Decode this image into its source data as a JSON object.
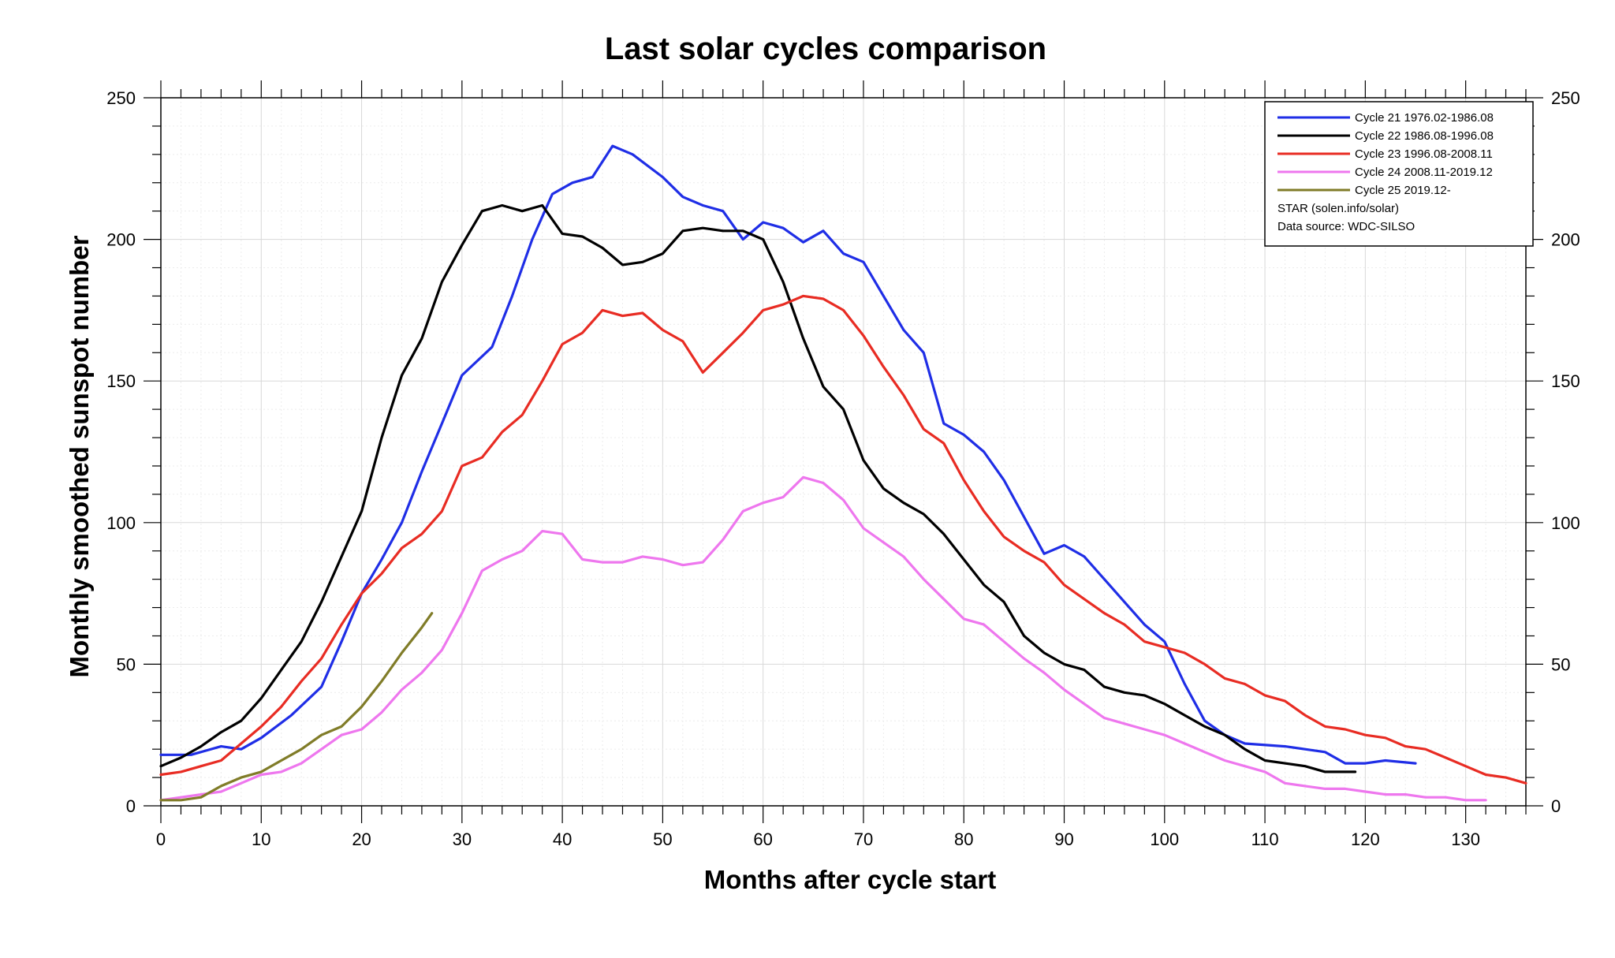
{
  "chart_data": {
    "type": "line",
    "title": "Last solar cycles comparison",
    "xlabel": "Months after cycle start",
    "ylabel": "Monthly smoothed sunspot number",
    "xlim": [
      0,
      136
    ],
    "ylim": [
      0,
      250
    ],
    "x_ticks": [
      "0",
      "10",
      "20",
      "30",
      "40",
      "50",
      "60",
      "70",
      "80",
      "90",
      "100",
      "110",
      "120",
      "130"
    ],
    "y_ticks": [
      "0",
      "50",
      "100",
      "150",
      "200",
      "250"
    ],
    "y_ticks_right": [
      "0",
      "50",
      "100",
      "150",
      "200",
      "250"
    ],
    "grid": true,
    "legend_position": "top-right",
    "legend_notes": [
      "STAR (solen.info/solar)",
      "Data source: WDC-SILSO"
    ],
    "series": [
      {
        "name": "Cycle 21 1976.02-1986.08",
        "color": "#1f2ee6",
        "points": [
          [
            0,
            18
          ],
          [
            3,
            18
          ],
          [
            6,
            21
          ],
          [
            8,
            20
          ],
          [
            10,
            24
          ],
          [
            13,
            32
          ],
          [
            16,
            42
          ],
          [
            18,
            58
          ],
          [
            20,
            75
          ],
          [
            22,
            87
          ],
          [
            24,
            100
          ],
          [
            26,
            118
          ],
          [
            28,
            135
          ],
          [
            30,
            152
          ],
          [
            33,
            162
          ],
          [
            35,
            180
          ],
          [
            37,
            200
          ],
          [
            39,
            216
          ],
          [
            41,
            220
          ],
          [
            43,
            222
          ],
          [
            45,
            233
          ],
          [
            47,
            230
          ],
          [
            50,
            222
          ],
          [
            52,
            215
          ],
          [
            54,
            212
          ],
          [
            56,
            210
          ],
          [
            58,
            200
          ],
          [
            60,
            206
          ],
          [
            62,
            204
          ],
          [
            64,
            199
          ],
          [
            66,
            203
          ],
          [
            68,
            195
          ],
          [
            70,
            192
          ],
          [
            72,
            180
          ],
          [
            74,
            168
          ],
          [
            76,
            160
          ],
          [
            78,
            135
          ],
          [
            80,
            131
          ],
          [
            82,
            125
          ],
          [
            84,
            115
          ],
          [
            86,
            102
          ],
          [
            88,
            89
          ],
          [
            90,
            92
          ],
          [
            92,
            88
          ],
          [
            94,
            80
          ],
          [
            96,
            72
          ],
          [
            98,
            64
          ],
          [
            100,
            58
          ],
          [
            102,
            43
          ],
          [
            104,
            30
          ],
          [
            106,
            25
          ],
          [
            108,
            22
          ],
          [
            112,
            21
          ],
          [
            114,
            20
          ],
          [
            116,
            19
          ],
          [
            118,
            15
          ],
          [
            120,
            15
          ],
          [
            122,
            16
          ],
          [
            125,
            15
          ]
        ]
      },
      {
        "name": "Cycle 22 1986.08-1996.08",
        "color": "#000000",
        "points": [
          [
            0,
            14
          ],
          [
            2,
            17
          ],
          [
            4,
            21
          ],
          [
            6,
            26
          ],
          [
            8,
            30
          ],
          [
            10,
            38
          ],
          [
            12,
            48
          ],
          [
            14,
            58
          ],
          [
            16,
            72
          ],
          [
            18,
            88
          ],
          [
            20,
            104
          ],
          [
            22,
            130
          ],
          [
            24,
            152
          ],
          [
            26,
            165
          ],
          [
            28,
            185
          ],
          [
            30,
            198
          ],
          [
            32,
            210
          ],
          [
            34,
            212
          ],
          [
            36,
            210
          ],
          [
            38,
            212
          ],
          [
            40,
            202
          ],
          [
            42,
            201
          ],
          [
            44,
            197
          ],
          [
            46,
            191
          ],
          [
            48,
            192
          ],
          [
            50,
            195
          ],
          [
            52,
            203
          ],
          [
            54,
            204
          ],
          [
            56,
            203
          ],
          [
            58,
            203
          ],
          [
            60,
            200
          ],
          [
            62,
            185
          ],
          [
            64,
            165
          ],
          [
            66,
            148
          ],
          [
            68,
            140
          ],
          [
            70,
            122
          ],
          [
            72,
            112
          ],
          [
            74,
            107
          ],
          [
            76,
            103
          ],
          [
            78,
            96
          ],
          [
            80,
            87
          ],
          [
            82,
            78
          ],
          [
            84,
            72
          ],
          [
            86,
            60
          ],
          [
            88,
            54
          ],
          [
            90,
            50
          ],
          [
            92,
            48
          ],
          [
            94,
            42
          ],
          [
            96,
            40
          ],
          [
            98,
            39
          ],
          [
            100,
            36
          ],
          [
            102,
            32
          ],
          [
            104,
            28
          ],
          [
            106,
            25
          ],
          [
            108,
            20
          ],
          [
            110,
            16
          ],
          [
            112,
            15
          ],
          [
            114,
            14
          ],
          [
            116,
            12
          ],
          [
            119,
            12
          ]
        ]
      },
      {
        "name": "Cycle 23 1996.08-2008.11",
        "color": "#e82c23",
        "points": [
          [
            0,
            11
          ],
          [
            2,
            12
          ],
          [
            4,
            14
          ],
          [
            6,
            16
          ],
          [
            8,
            22
          ],
          [
            10,
            28
          ],
          [
            12,
            35
          ],
          [
            14,
            44
          ],
          [
            16,
            52
          ],
          [
            18,
            64
          ],
          [
            20,
            75
          ],
          [
            22,
            82
          ],
          [
            24,
            91
          ],
          [
            26,
            96
          ],
          [
            28,
            104
          ],
          [
            30,
            120
          ],
          [
            32,
            123
          ],
          [
            34,
            132
          ],
          [
            36,
            138
          ],
          [
            38,
            150
          ],
          [
            40,
            163
          ],
          [
            42,
            167
          ],
          [
            44,
            175
          ],
          [
            46,
            173
          ],
          [
            48,
            174
          ],
          [
            50,
            168
          ],
          [
            52,
            164
          ],
          [
            54,
            153
          ],
          [
            56,
            160
          ],
          [
            58,
            167
          ],
          [
            60,
            175
          ],
          [
            62,
            177
          ],
          [
            64,
            180
          ],
          [
            66,
            179
          ],
          [
            68,
            175
          ],
          [
            70,
            166
          ],
          [
            72,
            155
          ],
          [
            74,
            145
          ],
          [
            76,
            133
          ],
          [
            78,
            128
          ],
          [
            80,
            115
          ],
          [
            82,
            104
          ],
          [
            84,
            95
          ],
          [
            86,
            90
          ],
          [
            88,
            86
          ],
          [
            90,
            78
          ],
          [
            92,
            73
          ],
          [
            94,
            68
          ],
          [
            96,
            64
          ],
          [
            98,
            58
          ],
          [
            100,
            56
          ],
          [
            102,
            54
          ],
          [
            104,
            50
          ],
          [
            106,
            45
          ],
          [
            108,
            43
          ],
          [
            110,
            39
          ],
          [
            112,
            37
          ],
          [
            114,
            32
          ],
          [
            116,
            28
          ],
          [
            118,
            27
          ],
          [
            120,
            25
          ],
          [
            122,
            24
          ],
          [
            124,
            21
          ],
          [
            126,
            20
          ],
          [
            128,
            17
          ],
          [
            130,
            14
          ],
          [
            132,
            11
          ],
          [
            134,
            10
          ],
          [
            136,
            8
          ]
        ]
      },
      {
        "name": "Cycle 24 2008.11-2019.12",
        "color": "#ee77ee",
        "points": [
          [
            0,
            2
          ],
          [
            2,
            3
          ],
          [
            4,
            4
          ],
          [
            6,
            5
          ],
          [
            8,
            8
          ],
          [
            10,
            11
          ],
          [
            12,
            12
          ],
          [
            14,
            15
          ],
          [
            16,
            20
          ],
          [
            18,
            25
          ],
          [
            20,
            27
          ],
          [
            22,
            33
          ],
          [
            24,
            41
          ],
          [
            26,
            47
          ],
          [
            28,
            55
          ],
          [
            30,
            68
          ],
          [
            32,
            83
          ],
          [
            34,
            87
          ],
          [
            36,
            90
          ],
          [
            38,
            97
          ],
          [
            40,
            96
          ],
          [
            42,
            87
          ],
          [
            44,
            86
          ],
          [
            46,
            86
          ],
          [
            48,
            88
          ],
          [
            50,
            87
          ],
          [
            52,
            85
          ],
          [
            54,
            86
          ],
          [
            56,
            94
          ],
          [
            58,
            104
          ],
          [
            60,
            107
          ],
          [
            62,
            109
          ],
          [
            64,
            116
          ],
          [
            66,
            114
          ],
          [
            68,
            108
          ],
          [
            70,
            98
          ],
          [
            72,
            93
          ],
          [
            74,
            88
          ],
          [
            76,
            80
          ],
          [
            78,
            73
          ],
          [
            80,
            66
          ],
          [
            82,
            64
          ],
          [
            84,
            58
          ],
          [
            86,
            52
          ],
          [
            88,
            47
          ],
          [
            90,
            41
          ],
          [
            92,
            36
          ],
          [
            94,
            31
          ],
          [
            96,
            29
          ],
          [
            98,
            27
          ],
          [
            100,
            25
          ],
          [
            102,
            22
          ],
          [
            104,
            19
          ],
          [
            106,
            16
          ],
          [
            108,
            14
          ],
          [
            110,
            12
          ],
          [
            112,
            8
          ],
          [
            114,
            7
          ],
          [
            116,
            6
          ],
          [
            118,
            6
          ],
          [
            120,
            5
          ],
          [
            122,
            4
          ],
          [
            124,
            4
          ],
          [
            126,
            3
          ],
          [
            128,
            3
          ],
          [
            130,
            2
          ],
          [
            132,
            2
          ]
        ]
      },
      {
        "name": "Cycle 25 2019.12-",
        "color": "#807c28",
        "points": [
          [
            0,
            2
          ],
          [
            2,
            2
          ],
          [
            4,
            3
          ],
          [
            6,
            7
          ],
          [
            8,
            10
          ],
          [
            10,
            12
          ],
          [
            12,
            16
          ],
          [
            14,
            20
          ],
          [
            16,
            25
          ],
          [
            18,
            28
          ],
          [
            20,
            35
          ],
          [
            22,
            44
          ],
          [
            24,
            54
          ],
          [
            26,
            63
          ],
          [
            27,
            68
          ]
        ]
      }
    ]
  }
}
